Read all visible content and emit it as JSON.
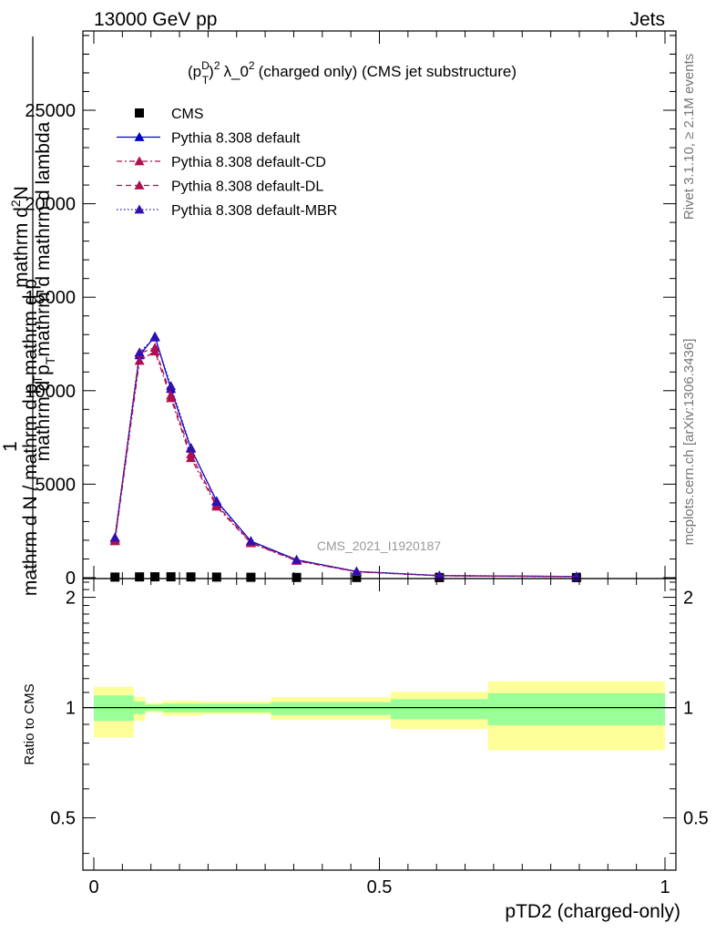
{
  "header": {
    "left": "13000 GeV pp",
    "right": "Jets"
  },
  "side_labels": {
    "rivet": "Rivet 3.1.10, ≥ 2.1M events",
    "mcplots": "mcplots.cern.ch [arXiv:1306.3436]"
  },
  "watermark": "CMS_2021_I1920187",
  "colors": {
    "cms": "#000000",
    "default": "#0000cc",
    "default_cd": "#b01050",
    "default_dl": "#b01050",
    "default_mbr": "#3010b0",
    "band_inner": "#99ff99",
    "band_outer": "#ffff99"
  },
  "chart_data": [
    {
      "type": "line",
      "title": "(p_T^D)^2 λ_0^2 (charged only) (CMS jet substructure)",
      "title_parts": {
        "p": "(p",
        "sup": "D",
        "sub": "T",
        "close": ")",
        "sq": "2",
        "lam": "λ_0",
        "rest": "(charged only) (CMS jet substructure)"
      },
      "ylabel_parts": {
        "num": "mathrm d",
        "num_sup": "2",
        "num_rest": "N",
        "den": "mathrm d p",
        "den_sub": "T",
        "den_rest": "mathrm d mathrm d lambda",
        "one": "1",
        "frac_den": "mathrm d N / mathrm d p",
        "frac_sub": "T",
        "frac_rest": "mathrm d p"
      },
      "xlabel": "pTD2 (charged-only)",
      "xlim": [
        0,
        1
      ],
      "ylim": [
        0,
        29000
      ],
      "yticks": [
        0,
        5000,
        10000,
        15000,
        20000,
        25000
      ],
      "ytick_labels": [
        "0",
        "5000",
        "10000",
        "15000",
        "20000",
        "25000"
      ],
      "legend_position": "top-left",
      "x": [
        0.037,
        0.08,
        0.107,
        0.135,
        0.17,
        0.215,
        0.275,
        0.355,
        0.46,
        0.605,
        0.845
      ],
      "series": [
        {
          "name": "CMS",
          "style": "square-markers",
          "values": [
            30,
            40,
            45,
            45,
            40,
            30,
            20,
            12,
            8,
            6,
            4
          ]
        },
        {
          "name": "Pythia 8.308 default",
          "style": "solid",
          "values": [
            2100,
            11900,
            12900,
            10100,
            6900,
            4100,
            1950,
            950,
            330,
            110,
            60
          ]
        },
        {
          "name": "Pythia 8.308 default-CD",
          "style": "dashdot",
          "values": [
            1950,
            11600,
            12100,
            9600,
            6400,
            3800,
            1850,
            900,
            310,
            100,
            55
          ]
        },
        {
          "name": "Pythia 8.308 default-DL",
          "style": "dashed",
          "values": [
            2000,
            12000,
            12300,
            9750,
            6600,
            3900,
            1880,
            920,
            320,
            105,
            58
          ]
        },
        {
          "name": "Pythia 8.308 default-MBR",
          "style": "dotted",
          "values": [
            2150,
            12050,
            12850,
            10250,
            6950,
            4050,
            1960,
            960,
            335,
            112,
            62
          ]
        }
      ]
    },
    {
      "type": "area",
      "ylabel": "Ratio to CMS",
      "ylim": [
        0.36,
        2.25
      ],
      "yticks": [
        0.5,
        1,
        2
      ],
      "ytick_labels": [
        "0.5",
        "1",
        "2"
      ],
      "xticks": [
        0,
        0.5,
        1
      ],
      "xtick_labels": [
        "0",
        "0.5",
        "1"
      ],
      "reference": 1,
      "bins": [
        {
          "x0": 0.0,
          "x1": 0.07,
          "inner": [
            0.92,
            1.08
          ],
          "outer": [
            0.83,
            1.14
          ]
        },
        {
          "x0": 0.07,
          "x1": 0.09,
          "inner": [
            0.96,
            1.04
          ],
          "outer": [
            0.92,
            1.07
          ]
        },
        {
          "x0": 0.09,
          "x1": 0.12,
          "inner": [
            0.98,
            1.02
          ],
          "outer": [
            0.97,
            1.03
          ]
        },
        {
          "x0": 0.12,
          "x1": 0.19,
          "inner": [
            0.97,
            1.025
          ],
          "outer": [
            0.95,
            1.045
          ]
        },
        {
          "x0": 0.19,
          "x1": 0.31,
          "inner": [
            0.97,
            1.025
          ],
          "outer": [
            0.96,
            1.04
          ]
        },
        {
          "x0": 0.31,
          "x1": 0.52,
          "inner": [
            0.955,
            1.035
          ],
          "outer": [
            0.925,
            1.07
          ]
        },
        {
          "x0": 0.52,
          "x1": 0.69,
          "inner": [
            0.93,
            1.055
          ],
          "outer": [
            0.875,
            1.105
          ]
        },
        {
          "x0": 0.69,
          "x1": 1.0,
          "inner": [
            0.895,
            1.095
          ],
          "outer": [
            0.765,
            1.18
          ]
        }
      ]
    }
  ]
}
